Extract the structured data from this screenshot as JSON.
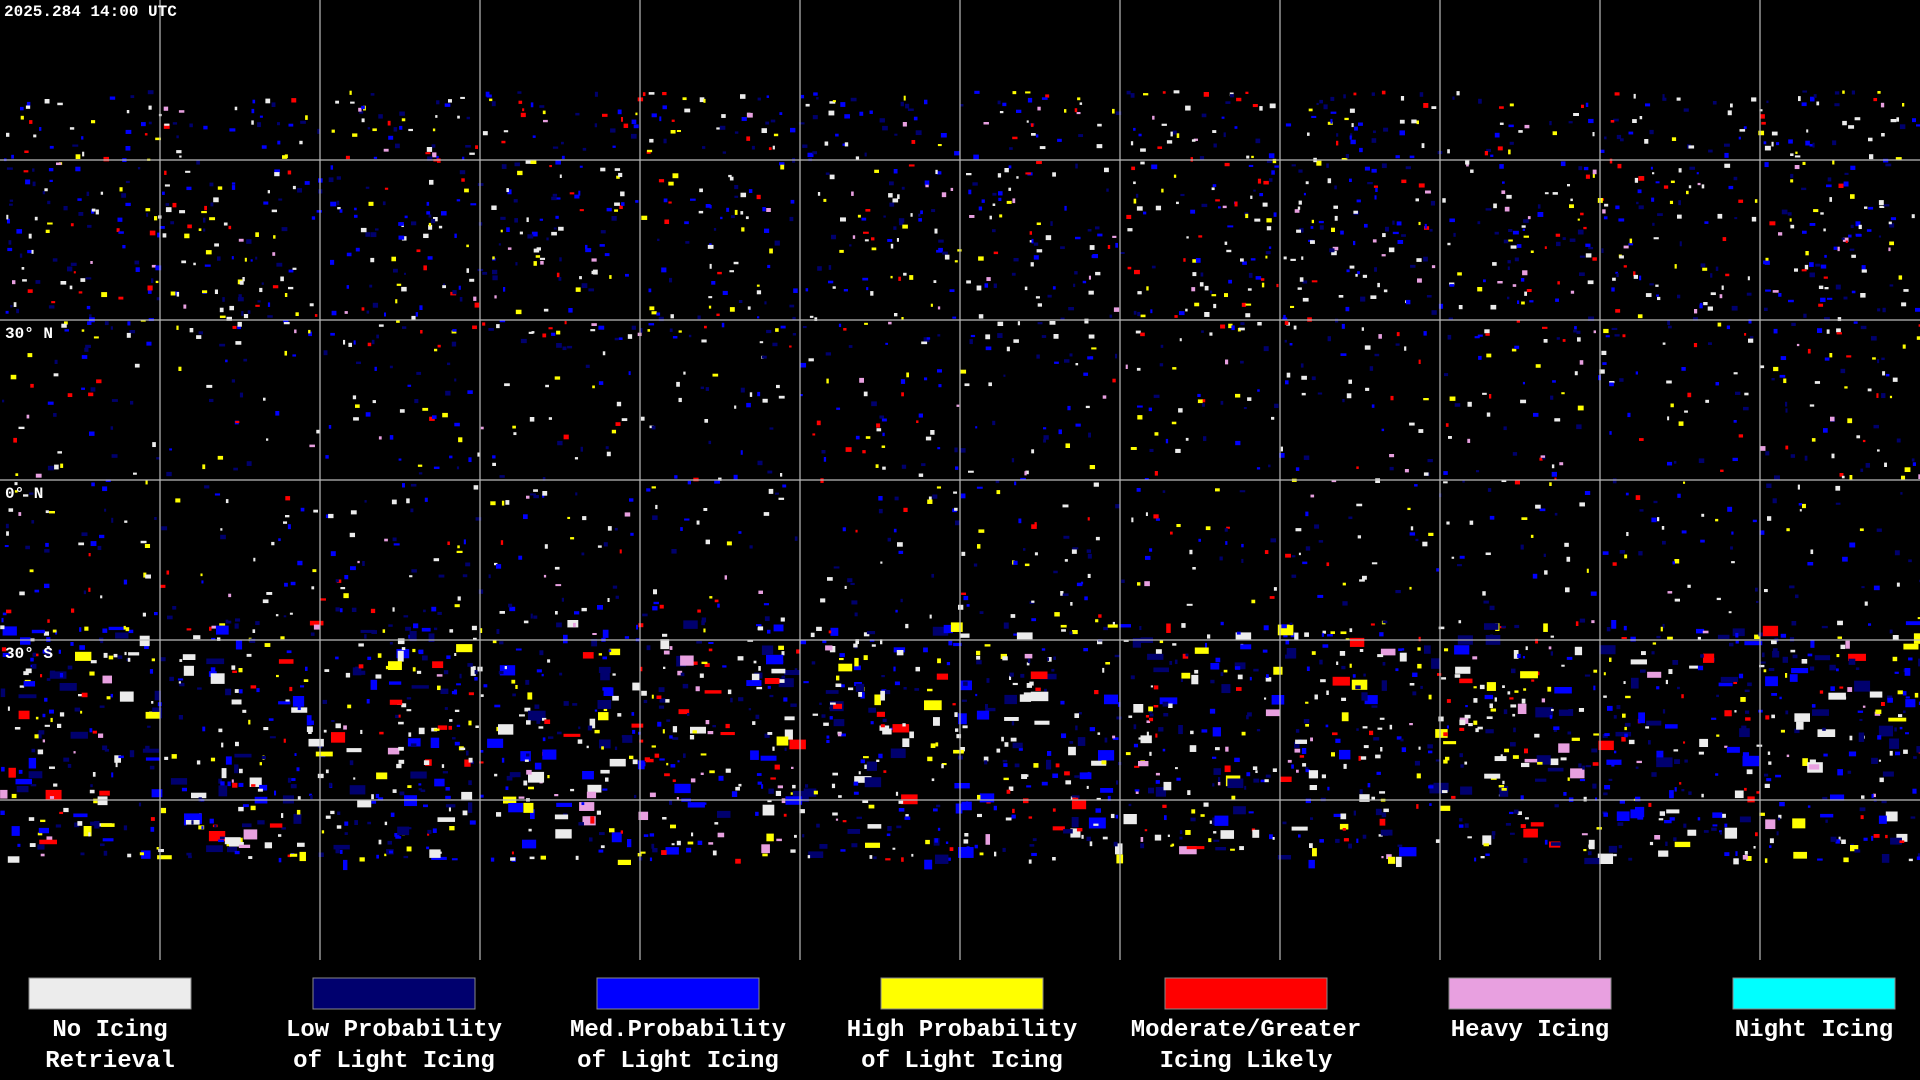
{
  "header": {
    "timestamp": "2025.284 14:00 UTC"
  },
  "map": {
    "latitude_labels": [
      "30° N",
      "0° N",
      "30° S"
    ]
  },
  "legend": [
    {
      "color": "#ececec",
      "lines": [
        "No Icing",
        "Retrieval"
      ]
    },
    {
      "color": "#00006e",
      "lines": [
        "Low Probability",
        "of Light Icing"
      ]
    },
    {
      "color": "#0000ff",
      "lines": [
        "Med.Probability",
        "of Light Icing"
      ]
    },
    {
      "color": "#ffff00",
      "lines": [
        "High Probability",
        "of Light Icing"
      ]
    },
    {
      "color": "#ff0000",
      "lines": [
        "Moderate/Greater",
        "Icing Likely"
      ]
    },
    {
      "color": "#e8a0e0",
      "lines": [
        "Heavy Icing"
      ]
    },
    {
      "color": "#00ffff",
      "lines": [
        "Night Icing"
      ]
    }
  ]
}
